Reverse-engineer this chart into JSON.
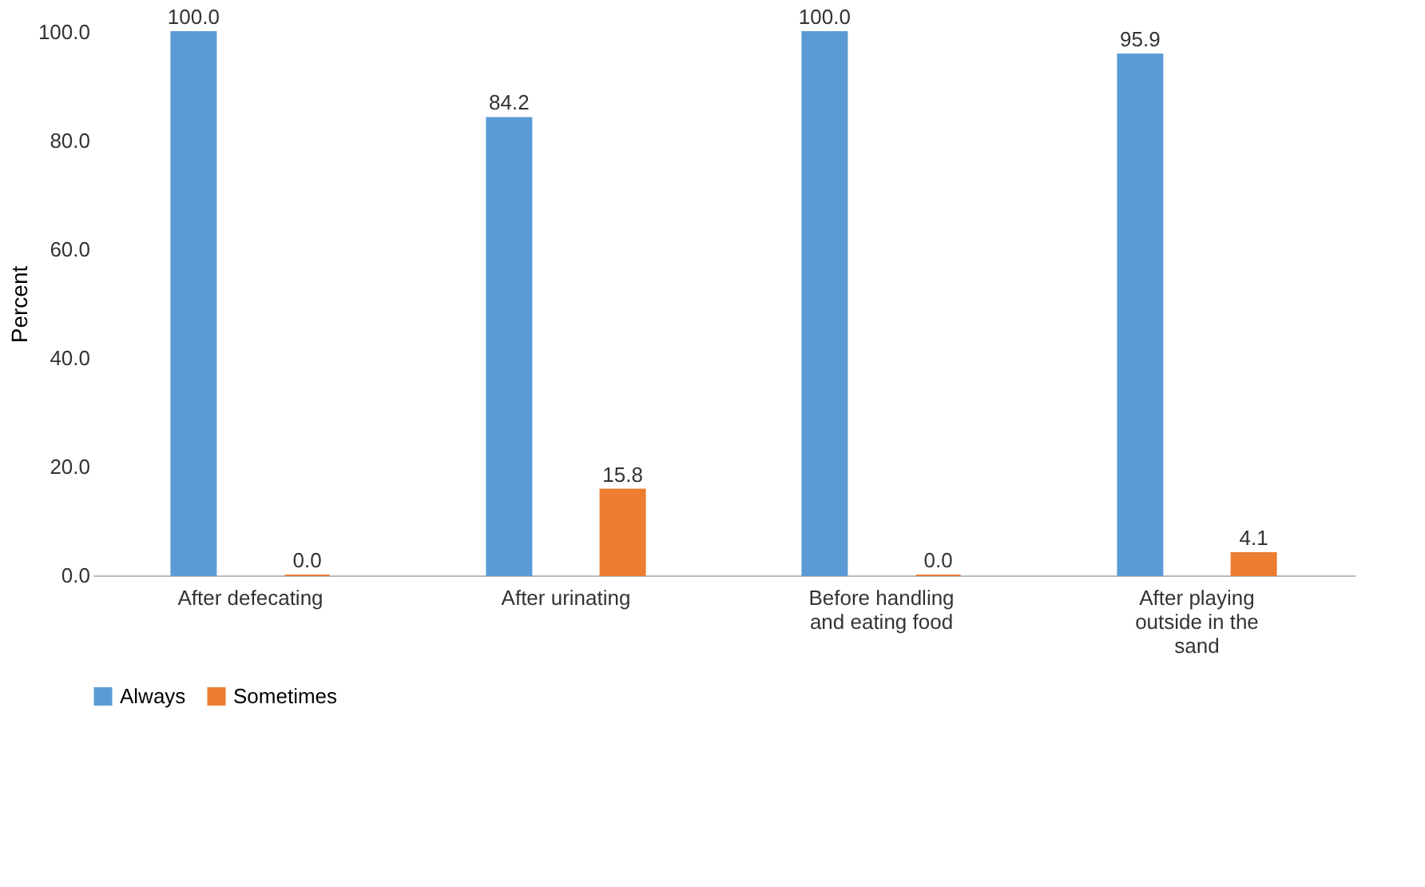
{
  "chart_data": {
    "type": "bar",
    "ylabel": "Percent",
    "categories": [
      "After defecating",
      "After urinating",
      "Before handling and eating food",
      "After playing outside in the sand"
    ],
    "series": [
      {
        "name": "Always",
        "color": "#5b9bd5",
        "values": [
          100.0,
          84.2,
          100.0,
          95.9
        ],
        "value_labels": [
          "100.0",
          "84.2",
          "100.0",
          "95.9"
        ]
      },
      {
        "name": "Sometimes",
        "color": "#ed7d31",
        "values": [
          0.0,
          15.8,
          0.0,
          4.1
        ],
        "value_labels": [
          "0.0",
          "15.8",
          "0.0",
          "4.1"
        ]
      }
    ],
    "ylim": [
      0,
      100
    ],
    "yticks": [
      {
        "value": 0,
        "label": "0.0"
      },
      {
        "value": 20,
        "label": "20.0"
      },
      {
        "value": 40,
        "label": "40.0"
      },
      {
        "value": 60,
        "label": "60.0"
      },
      {
        "value": 80,
        "label": "80.0"
      },
      {
        "value": 100,
        "label": "100.0"
      }
    ],
    "grid": false,
    "legend": "bottom"
  }
}
